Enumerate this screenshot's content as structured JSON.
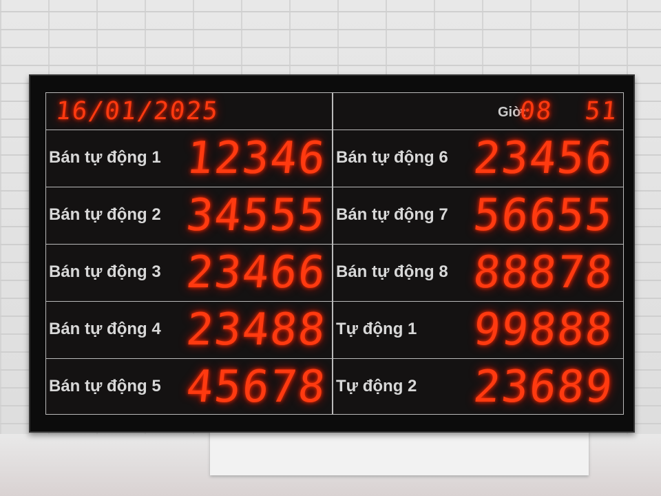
{
  "header": {
    "date": "16/01/2025",
    "time_label": "Giờ:",
    "time_hour": "08",
    "time_minute": "51"
  },
  "left_rows": [
    {
      "label": "Bán tự động 1",
      "value": "12346"
    },
    {
      "label": "Bán tự động 2",
      "value": "34555"
    },
    {
      "label": "Bán tự động 3",
      "value": "23466"
    },
    {
      "label": "Bán tự động 4",
      "value": "23488"
    },
    {
      "label": "Bán tự động 5",
      "value": "45678"
    }
  ],
  "right_rows": [
    {
      "label": "Bán tự động 6",
      "value": "23456"
    },
    {
      "label": "Bán tự động 7",
      "value": "56655"
    },
    {
      "label": "Bán tự động 8",
      "value": "88878"
    },
    {
      "label": "Tự động 1",
      "value": "99888"
    },
    {
      "label": "Tự động 2",
      "value": "23689"
    }
  ],
  "colors": {
    "led": "#ff3a10",
    "label": "#d8d8d8",
    "board": "#0c0c0c"
  }
}
